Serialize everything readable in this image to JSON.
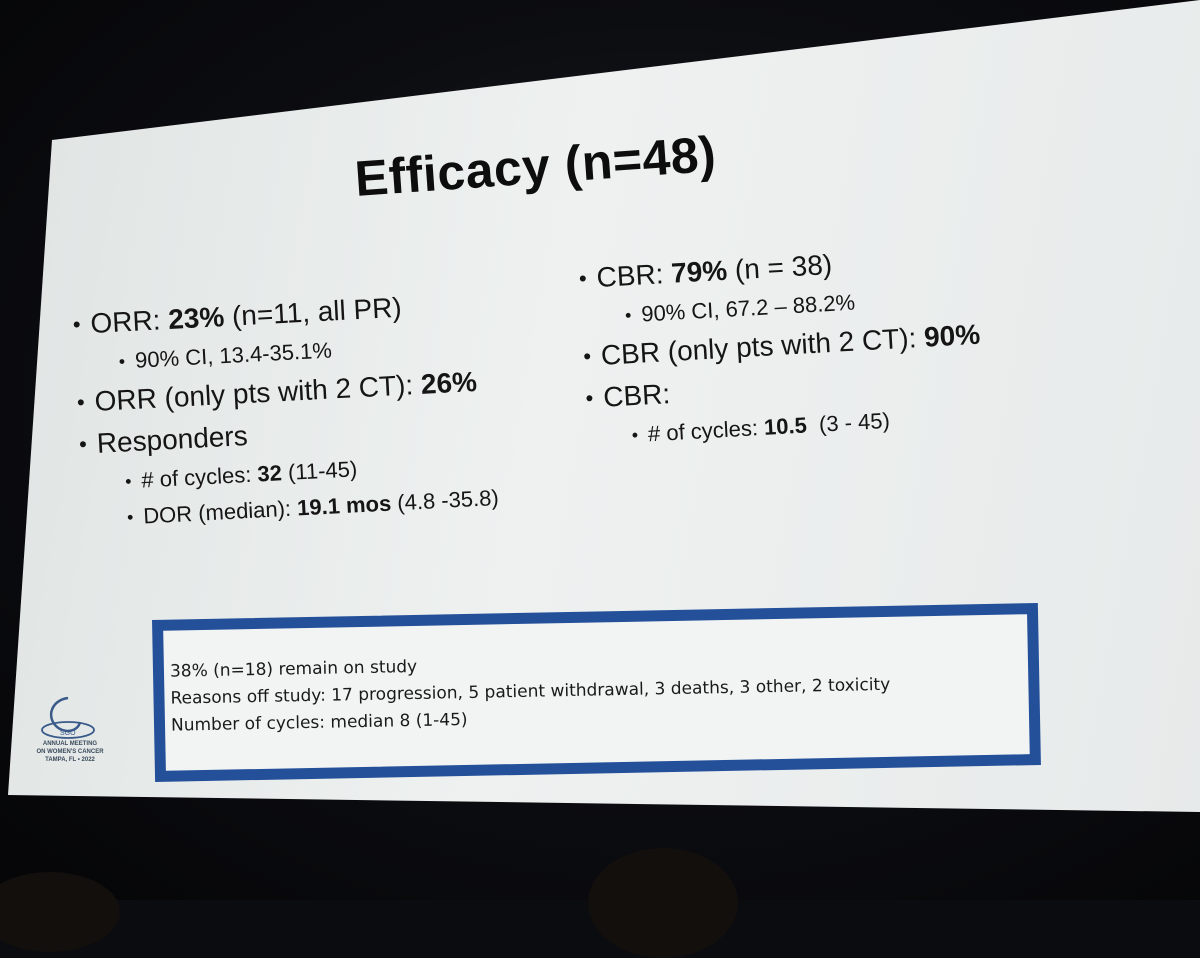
{
  "slide": {
    "title": "Efficacy (n=48)",
    "left_column": [
      {
        "level": 1,
        "parts": [
          {
            "t": "ORR: "
          },
          {
            "t": "23%",
            "b": true
          },
          {
            "t": " (n=11, all PR)"
          }
        ]
      },
      {
        "level": 2,
        "parts": [
          {
            "t": "90% CI, 13.4-35.1%"
          }
        ]
      },
      {
        "level": 1,
        "parts": [
          {
            "t": "ORR (only pts with 2 CT): "
          },
          {
            "t": "26%",
            "b": true
          }
        ]
      },
      {
        "level": 1,
        "parts": [
          {
            "t": "Responders"
          }
        ]
      },
      {
        "level": 2,
        "parts": [
          {
            "t": "# of cycles: "
          },
          {
            "t": "32",
            "b": true
          },
          {
            "t": " (11-45)"
          }
        ]
      },
      {
        "level": 2,
        "parts": [
          {
            "t": "DOR (median): "
          },
          {
            "t": "19.1 mos",
            "b": true
          },
          {
            "t": " (4.8 -35.8)"
          }
        ]
      }
    ],
    "right_column": [
      {
        "level": 1,
        "parts": [
          {
            "t": "CBR: "
          },
          {
            "t": "79%",
            "b": true
          },
          {
            "t": " (n = 38)"
          }
        ]
      },
      {
        "level": 2,
        "parts": [
          {
            "t": "90% CI, 67.2 – 88.2%"
          }
        ]
      },
      {
        "level": 1,
        "parts": [
          {
            "t": "CBR (only pts with 2 CT): "
          },
          {
            "t": "90%",
            "b": true
          }
        ]
      },
      {
        "level": 1,
        "parts": [
          {
            "t": "CBR:"
          }
        ]
      },
      {
        "level": 2,
        "parts": [
          {
            "t": "# of cycles: "
          },
          {
            "t": "10.5",
            "b": true
          },
          {
            "t": "  (3 - 45)"
          }
        ]
      }
    ],
    "note_box": {
      "line1": "38% (n=18) remain on study",
      "line2": "Reasons off study: 17 progression, 5 patient withdrawal, 3 deaths, 3 other, 2 toxicity",
      "line3": "Number of cycles: median 8 (1-45)"
    },
    "logo": {
      "icon": "sgo-logo-icon",
      "mark": "SGO",
      "line1": "ANNUAL MEETING",
      "line2": "ON WOMEN'S CANCER",
      "line3": "TAMPA, FL • 2022"
    },
    "colors": {
      "box_border": "#24509a",
      "slide_bg": "#e9eceb",
      "text": "#151515"
    }
  }
}
